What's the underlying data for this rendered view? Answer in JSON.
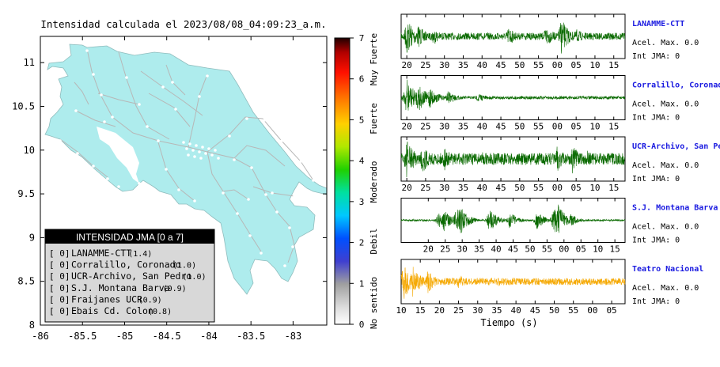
{
  "map": {
    "title": "Intensidad calculada el 2023/08/08_04:09:23_a.m.",
    "x_ticks": [
      "-86",
      "-85.5",
      "-85",
      "-84.5",
      "-84",
      "-83.5",
      "-83"
    ],
    "y_ticks": [
      "11",
      "10.5",
      "10",
      "9.5",
      "9",
      "8.5",
      "8"
    ],
    "xlim": [
      -86,
      -82.6
    ],
    "ylim": [
      8,
      11.3
    ],
    "land_color": "#aeeced",
    "water_color": "#ffffff"
  },
  "colorbar": {
    "ticks": [
      "0",
      "1",
      "2",
      "3",
      "4",
      "5",
      "6",
      "7"
    ],
    "labels": [
      "No sentido",
      "Debil",
      "Moderado",
      "Fuerte",
      "Muy Fuerte"
    ]
  },
  "legend": {
    "title": "INTENSIDAD JMA [0 a 7]",
    "items": [
      {
        "badge": "[ 0]",
        "name": "LANAMME-CTT",
        "value": "(1.4)"
      },
      {
        "badge": "[ 0]",
        "name": "Corralillo, Coronado",
        "value": "(1.0)"
      },
      {
        "badge": "[ 0]",
        "name": "UCR-Archivo, San Pedro",
        "value": "(1.0)"
      },
      {
        "badge": "[ 0]",
        "name": "S.J. Montana Barva",
        "value": "(0.9)"
      },
      {
        "badge": "[ 0]",
        "name": "Fraijanes UCR",
        "value": "(0.9)"
      },
      {
        "badge": "[ 0]",
        "name": "Ebais Cd. Colon",
        "value": "(0.8)"
      }
    ]
  },
  "chart_data": [
    {
      "type": "line",
      "station": "LANAMME-CTT",
      "color": "#0a6a00",
      "accel_label": "Acel. Max. 0.0",
      "jma_label": "Int JMA: 0",
      "ticks": [
        "20",
        "25",
        "30",
        "35",
        "40",
        "45",
        "50",
        "55",
        "00",
        "05",
        "10",
        "15"
      ],
      "xlim": [
        18.5,
        78
      ],
      "tick_values": [
        20,
        25,
        30,
        35,
        40,
        45,
        50,
        55,
        60,
        65,
        70,
        75
      ],
      "bursts": [
        [
          20,
          1.0
        ],
        [
          23,
          0.6
        ],
        [
          27,
          0.45
        ],
        [
          47,
          0.5
        ],
        [
          57,
          0.55
        ],
        [
          61,
          0.95
        ],
        [
          65,
          0.4
        ]
      ],
      "base": 0.18
    },
    {
      "type": "line",
      "station": "Corralillo, Coronado",
      "color": "#0a6a00",
      "accel_label": "Acel. Max. 0.0",
      "jma_label": "Int JMA: 0",
      "ticks": [
        "20",
        "25",
        "30",
        "35",
        "40",
        "45",
        "50",
        "55",
        "00",
        "05",
        "10",
        "15"
      ],
      "xlim": [
        18.5,
        78
      ],
      "tick_values": [
        20,
        25,
        30,
        35,
        40,
        45,
        50,
        55,
        60,
        65,
        70,
        75
      ],
      "bursts": [
        [
          20,
          1.0
        ],
        [
          23,
          0.8
        ],
        [
          26,
          0.6
        ],
        [
          31,
          0.35
        ],
        [
          39,
          0.25
        ]
      ],
      "base": 0.08
    },
    {
      "type": "line",
      "station": "UCR-Archivo, San Pedro",
      "color": "#0a6a00",
      "accel_label": "Acel. Max. 0.0",
      "jma_label": "Int JMA: 0",
      "ticks": [
        "20",
        "25",
        "30",
        "35",
        "40",
        "45",
        "50",
        "55",
        "00",
        "05",
        "10",
        "15"
      ],
      "xlim": [
        18.5,
        78
      ],
      "tick_values": [
        20,
        25,
        30,
        35,
        40,
        45,
        50,
        55,
        60,
        65,
        70,
        75
      ],
      "bursts": [
        [
          20,
          1.0
        ],
        [
          24,
          0.8
        ],
        [
          30,
          0.6
        ],
        [
          40,
          0.4
        ],
        [
          60,
          0.7
        ],
        [
          64,
          0.75
        ],
        [
          68,
          0.45
        ]
      ],
      "base": 0.3
    },
    {
      "type": "line",
      "station": "S.J. Montana Barva",
      "color": "#0a6a00",
      "accel_label": "Acel. Max. 0.0",
      "jma_label": "Int JMA: 0",
      "ticks": [
        "20",
        "25",
        "30",
        "35",
        "40",
        "45",
        "50",
        "55",
        "00",
        "05",
        "10",
        "15"
      ],
      "xlim": [
        12,
        78
      ],
      "tick_values": [
        20,
        25,
        30,
        35,
        40,
        45,
        50,
        55,
        60,
        65,
        70,
        75
      ],
      "bursts": [
        [
          23,
          0.4
        ],
        [
          24.5,
          0.6
        ],
        [
          28,
          0.5
        ],
        [
          29,
          1.0
        ],
        [
          38,
          0.65
        ],
        [
          44,
          0.45
        ],
        [
          52,
          0.5
        ],
        [
          57,
          0.7
        ],
        [
          58,
          0.95
        ],
        [
          62,
          0.35
        ]
      ],
      "base": 0.05
    },
    {
      "type": "line",
      "station": "Teatro Nacional",
      "color": "#f5a800",
      "accel_label": "Acel. Max. 0.0",
      "jma_label": "Int JMA: 0",
      "ticks": [
        "10",
        "15",
        "20",
        "25",
        "30",
        "35",
        "40",
        "45",
        "50",
        "55",
        "00",
        "05"
      ],
      "xlim": [
        10,
        68.5
      ],
      "tick_values": [
        10,
        15,
        20,
        25,
        30,
        35,
        40,
        45,
        50,
        55,
        60,
        65
      ],
      "bursts": [
        [
          10.5,
          1.0
        ],
        [
          13,
          0.8
        ],
        [
          17,
          0.6
        ],
        [
          25,
          0.4
        ],
        [
          35,
          0.3
        ]
      ],
      "base": 0.18,
      "xlabel": "Tiempo (s)"
    }
  ]
}
